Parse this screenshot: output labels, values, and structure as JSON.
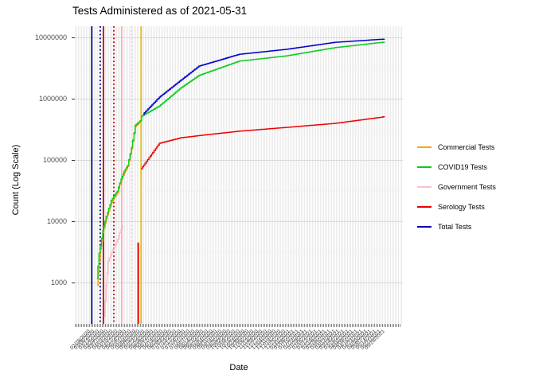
{
  "title": "Tests Administered as of 2021-05-31",
  "y_axis": {
    "title": "Count (Log Scale)",
    "ticks": [
      {
        "label": "10000000",
        "value": 10000000
      },
      {
        "label": "1000000",
        "value": 1000000
      },
      {
        "label": "100000",
        "value": 100000
      },
      {
        "label": "10000",
        "value": 10000
      },
      {
        "label": "1000",
        "value": 1000
      }
    ]
  },
  "x_axis": {
    "title": "Date",
    "labels": [
      "02/28/2020",
      "03/06/2020",
      "03/13/2020",
      "03/20/2020",
      "03/27/2020",
      "04/03/2020",
      "04/10/2020",
      "04/17/2020",
      "04/24/2020",
      "05/01/2020",
      "05/08/2020",
      "05/15/2020",
      "05/22/2020",
      "05/29/2020",
      "06/05/2020",
      "06/12/2020",
      "06/19/2020",
      "06/26/2020",
      "07/03/2020",
      "07/10/2020",
      "07/17/2020",
      "07/24/2020",
      "07/31/2020",
      "08/07/2020",
      "08/14/2020",
      "08/21/2020",
      "08/28/2020",
      "09/04/2020",
      "09/11/2020",
      "09/18/2020",
      "09/25/2020",
      "10/02/2020",
      "10/09/2020",
      "10/16/2020",
      "10/23/2020",
      "10/30/2020",
      "11/06/2020",
      "11/13/2020",
      "11/20/2020",
      "11/27/2020",
      "12/04/2020",
      "12/11/2020",
      "12/18/2020",
      "12/25/2020",
      "01/01/2021",
      "01/08/2021",
      "01/15/2021",
      "01/22/2021",
      "01/29/2021",
      "02/05/2021",
      "02/12/2021",
      "02/19/2021",
      "02/26/2021",
      "03/05/2021",
      "03/12/2021",
      "03/19/2021",
      "03/26/2021",
      "04/02/2021",
      "04/09/2021",
      "04/16/2021",
      "04/23/2021",
      "04/30/2021",
      "05/07/2021",
      "05/14/2021",
      "05/21/2021",
      "05/28/2021"
    ]
  },
  "legend": {
    "items": [
      {
        "key": "commercial",
        "label": "Commercial Tests",
        "color": "#FFA000"
      },
      {
        "key": "covid19",
        "label": "COVID19 Tests",
        "color": "#0ACC1E"
      },
      {
        "key": "government",
        "label": "Government Tests",
        "color": "#FFC0CB"
      },
      {
        "key": "serology",
        "label": "Serology Tests",
        "color": "#EE0000"
      },
      {
        "key": "total",
        "label": "Total Tests",
        "color": "#0000B4"
      }
    ]
  },
  "chart_data": {
    "type": "line",
    "y_scale": "log",
    "ylim": [
      1000,
      10000000
    ],
    "x_unit": "days_since_2020-03-12",
    "x_start_date": "2020-03-12",
    "x_end_date": "2021-05-31",
    "grid": true,
    "legend_position": "right",
    "series": [
      {
        "name": "Government Tests",
        "key": "government",
        "color": "#FFB6C1",
        "points": [
          [
            12,
            280
          ],
          [
            15,
            900
          ],
          [
            18,
            2250
          ],
          [
            24,
            3200
          ],
          [
            31,
            4500
          ],
          [
            36,
            6500
          ],
          [
            40,
            8300
          ],
          [
            42,
            8300
          ]
        ]
      },
      {
        "name": "Commercial Tests",
        "key": "commercial",
        "color": "#FFA000",
        "points": [
          [
            1,
            900
          ],
          [
            6,
            3500
          ],
          [
            10,
            6500
          ],
          [
            15,
            11000
          ],
          [
            23,
            20000
          ],
          [
            32,
            29000
          ],
          [
            38,
            46000
          ],
          [
            43,
            62000
          ],
          [
            48,
            78000
          ],
          [
            54,
            150000
          ],
          [
            60,
            350000
          ],
          [
            67,
            420000
          ]
        ]
      },
      {
        "name": "COVID19 Tests",
        "key": "covid19",
        "color": "#0ACC1E",
        "points": [
          [
            1,
            1150
          ],
          [
            4,
            3000
          ],
          [
            10,
            7000
          ],
          [
            15,
            12000
          ],
          [
            23,
            22000
          ],
          [
            32,
            31000
          ],
          [
            38,
            49000
          ],
          [
            43,
            66000
          ],
          [
            48,
            81000
          ],
          [
            54,
            160000
          ],
          [
            60,
            370000
          ],
          [
            67,
            430000
          ],
          [
            68,
            435000
          ],
          [
            70,
            520000
          ],
          [
            97,
            760000
          ],
          [
            130,
            1500000
          ],
          [
            158,
            2400000
          ],
          [
            220,
            4100000
          ],
          [
            293,
            5000000
          ],
          [
            367,
            6800000
          ],
          [
            444,
            8400000
          ]
        ]
      },
      {
        "name": "Serology Tests",
        "key": "serology",
        "color": "#EE0000",
        "points": [
          [
            69,
            72000
          ],
          [
            97,
            187000
          ],
          [
            130,
            230000
          ],
          [
            158,
            250000
          ],
          [
            220,
            295000
          ],
          [
            293,
            340000
          ],
          [
            367,
            395000
          ],
          [
            440,
            500000
          ],
          [
            444,
            515000
          ]
        ]
      },
      {
        "name": "Total Tests",
        "key": "total",
        "color": "#0000C8",
        "points": [
          [
            72,
            560000
          ],
          [
            97,
            1060000
          ],
          [
            130,
            2000000
          ],
          [
            158,
            3400000
          ],
          [
            220,
            5300000
          ],
          [
            293,
            6400000
          ],
          [
            367,
            8300000
          ],
          [
            444,
            9400000
          ]
        ]
      }
    ],
    "vlines": [
      {
        "day": -7,
        "color": "#00008B",
        "style": "solid"
      },
      {
        "day": 6,
        "color": "#00008B",
        "style": "dotted"
      },
      {
        "day": 11,
        "color": "#C00000",
        "style": "solid"
      },
      {
        "day": 27,
        "color": "#C00000",
        "style": "dotted"
      },
      {
        "day": 39,
        "color": "#FFAABB",
        "style": "solid"
      },
      {
        "day": 54,
        "color": "#FFC3CE",
        "style": "dotted"
      },
      {
        "day": 69,
        "color": "#EDC001",
        "style": "solid"
      }
    ],
    "vsegments": [
      {
        "day": 67,
        "color": "#EE0000",
        "v_from": 150,
        "v_to": 4500
      }
    ]
  }
}
